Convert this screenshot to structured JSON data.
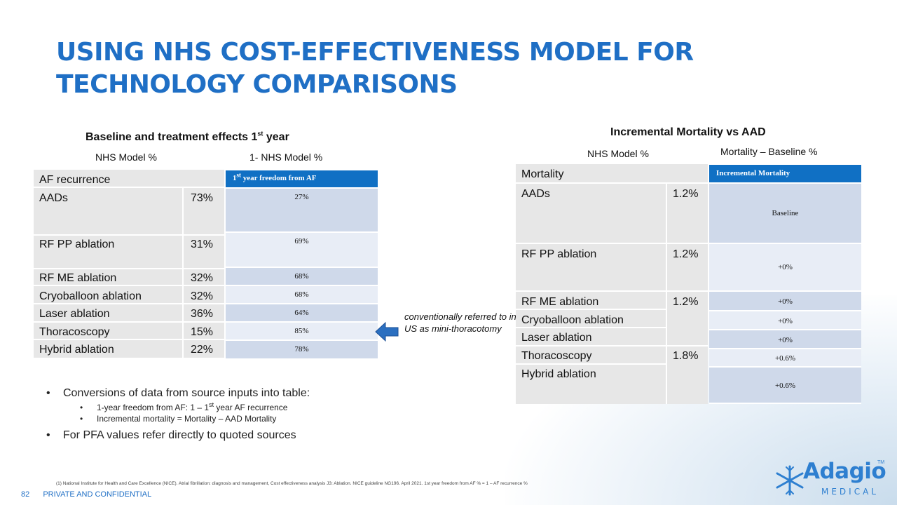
{
  "title": "USING NHS COST-EFFECTIVENESS MODEL FOR TECHNOLOGY COMPARISONS",
  "left_table": {
    "caption": "Baseline and treatment effects 1",
    "caption_sup": "st",
    "caption_end": " year",
    "col1_label": "NHS Model %",
    "col2_label": "1- NHS Model %",
    "header": "AF recurrence",
    "blue_header_sup": "st",
    "blue_header_pre": "1",
    "blue_header_post": " year freedom from AF",
    "rows": [
      {
        "name": "AADs",
        "value": "73%",
        "freedom": "27%"
      },
      {
        "name": "RF PP ablation",
        "value": "31%",
        "freedom": "69%"
      },
      {
        "name": "RF ME ablation",
        "value": "32%",
        "freedom": "68%"
      },
      {
        "name": "Cryoballoon ablation",
        "value": "32%",
        "freedom": "68%"
      },
      {
        "name": "Laser ablation",
        "value": "36%",
        "freedom": "64%"
      },
      {
        "name": "Thoracoscopy",
        "value": "15%",
        "freedom": "85%"
      },
      {
        "name": "Hybrid ablation",
        "value": "22%",
        "freedom": "78%"
      }
    ]
  },
  "right_table": {
    "caption": "Incremental Mortality  vs AAD",
    "col1_label": "NHS Model %",
    "col2_label": "Mortality – Baseline %",
    "header": "Mortality",
    "blue_header": "Incremental Mortality",
    "rows": [
      {
        "name": "AADs",
        "value": "1.2%",
        "incremental": "Baseline"
      },
      {
        "name": "RF PP ablation",
        "value": "1.2%",
        "incremental": "+0%"
      },
      {
        "name": "RF ME ablation",
        "value": "1.2%",
        "incremental": "+0%"
      },
      {
        "name": "Cryoballoon ablation",
        "value": "",
        "incremental": "+0%"
      },
      {
        "name": "Laser ablation",
        "value": "",
        "incremental": "+0%"
      },
      {
        "name": "Thoracoscopy",
        "value": "1.8%",
        "incremental": "+0.6%"
      },
      {
        "name": "Hybrid ablation",
        "value": "",
        "incremental": "+0.6%"
      }
    ]
  },
  "note": "conventionally referred to in US as mini-thoracotomy",
  "bullets": {
    "b1": "Conversions of data from source inputs into table:",
    "b1_sub1_pre": "1-year freedom from AF: 1 – 1",
    "b1_sub1_sup": "st",
    "b1_sub1_post": " year AF recurrence",
    "b1_sub2": "Incremental mortality = Mortality – AAD Mortality",
    "b2": "For PFA values refer directly to quoted sources"
  },
  "footnote": "(1) National Institute for Health and Care Excellence (NICE). Atrial fibrillation: diagnosis and management, Cost effectiveness analysis J3: Ablation. NICE guideline NG196. April 2021. 1st year freedom from AF % = 1 – AF recurrence %",
  "footer": {
    "page": "82",
    "label": "PRIVATE AND CONFIDENTIAL"
  },
  "logo": {
    "name": "Adagio",
    "sub": "MEDICAL",
    "tm": "TM"
  },
  "colors": {
    "accent": "#1f6fc5",
    "header_blue": "#1070c4",
    "row_dark": "#cfd9ea",
    "row_light": "#e8edf6",
    "grey": "#e7e7e7"
  }
}
